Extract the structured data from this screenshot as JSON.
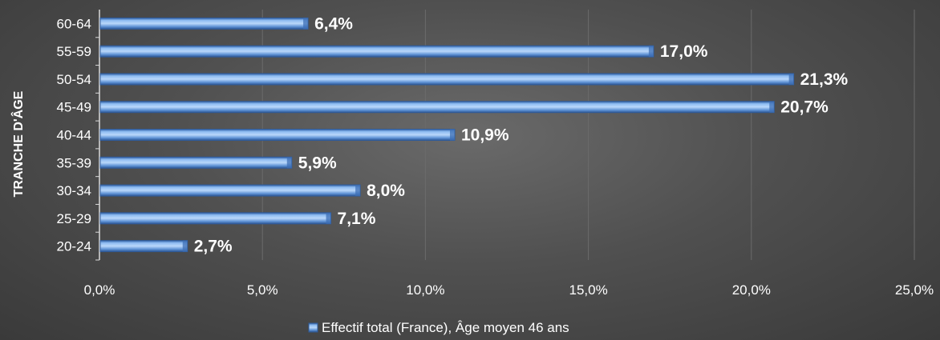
{
  "chart_data": {
    "type": "bar",
    "orientation": "horizontal",
    "categories": [
      "20-24",
      "25-29",
      "30-34",
      "35-39",
      "40-44",
      "45-49",
      "50-54",
      "55-59",
      "60-64"
    ],
    "series": [
      {
        "name": "Effectif total (France), Âge moyen 46 ans",
        "values": [
          2.7,
          7.1,
          8.0,
          5.9,
          10.9,
          20.7,
          21.3,
          17.0,
          6.4
        ],
        "labels": [
          "2,7%",
          "7,1%",
          "8,0%",
          "5,9%",
          "10,9%",
          "20,7%",
          "21,3%",
          "17,0%",
          "6,4%"
        ]
      }
    ],
    "ylabel": "TRANCHE D'ÂGE",
    "xlabel": "",
    "xlim": [
      0,
      25
    ],
    "x_ticks": [
      0,
      5,
      10,
      15,
      20,
      25
    ],
    "x_tick_labels": [
      "0,0%",
      "5,0%",
      "10,0%",
      "15,0%",
      "20,0%",
      "25,0%"
    ],
    "grid": "vertical",
    "legend": "bottom",
    "colors": {
      "bar_fill": "#6fa3e0",
      "bar_edge": "#2f5b9a",
      "gridline": "#6b6b6b",
      "text": "#ffffff"
    }
  }
}
